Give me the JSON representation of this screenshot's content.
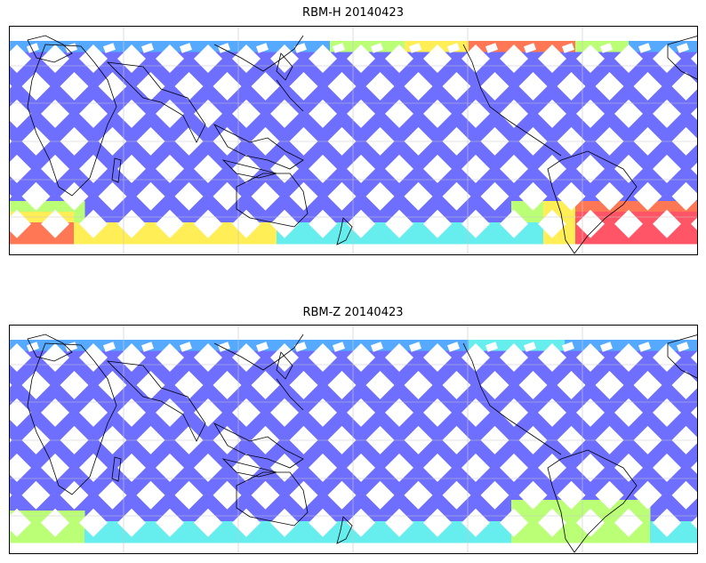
{
  "panels": [
    {
      "title": "RBM-H 20140423"
    },
    {
      "title": "RBM-Z 20140423"
    }
  ],
  "colors": {
    "low": "#6666ff",
    "mid_low": "#55aaff",
    "mid": "#66eeee",
    "mid_high": "#bbff77",
    "high": "#ffee55",
    "very_high": "#ff7755",
    "max": "#ff5566",
    "coast": "#000000",
    "grid": "#c8c8c8"
  }
}
